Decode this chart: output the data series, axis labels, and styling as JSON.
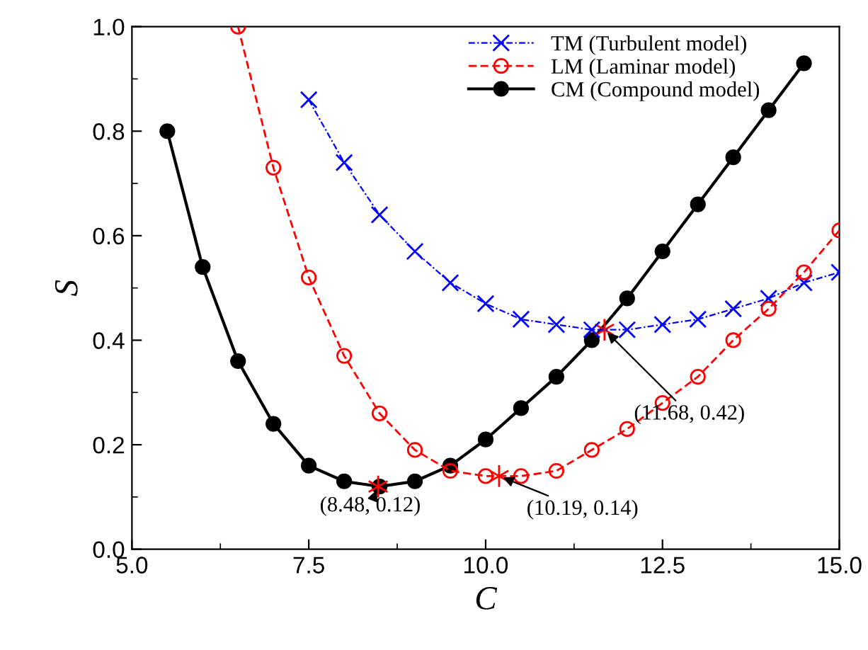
{
  "chart_data": {
    "type": "line",
    "xlabel": "C",
    "ylabel": "S",
    "xlim": [
      5.0,
      15.0
    ],
    "xticks": [
      {
        "value": 5,
        "label": "5.0"
      },
      {
        "value": 7.5,
        "label": "7.5"
      },
      {
        "value": 10,
        "label": "10.0"
      },
      {
        "value": 12.5,
        "label": "12.5"
      },
      {
        "value": 15,
        "label": "15.0"
      }
    ],
    "ylim": [
      0,
      1.0
    ],
    "yticks": [
      {
        "value": 0,
        "label": "0.0"
      },
      {
        "value": 0.2,
        "label": "0.2"
      },
      {
        "value": 0.4,
        "label": "0.4"
      },
      {
        "value": 0.6,
        "label": "0.6"
      },
      {
        "value": 0.8,
        "label": "0.8"
      },
      {
        "value": 1.0,
        "label": "1.0"
      }
    ],
    "grid": false,
    "legend": "top right",
    "series": [
      {
        "name": "TM (Turbulent model)",
        "color": "#0000ff",
        "marker": "cross",
        "line_style": "dotted",
        "x": [
          7.5,
          8.0,
          8.5,
          9.0,
          9.5,
          10.0,
          10.5,
          11.0,
          11.5,
          12.0,
          12.5,
          13.0,
          13.5,
          14.0,
          14.5,
          15.0
        ],
        "values": [
          0.86,
          0.74,
          0.64,
          0.57,
          0.51,
          0.47,
          0.44,
          0.43,
          0.42,
          0.42,
          0.43,
          0.44,
          0.46,
          0.48,
          0.51,
          0.53
        ]
      },
      {
        "name": "LM (Laminar model)",
        "color": "#ff0000",
        "marker": "circle",
        "line_style": "dashed",
        "x": [
          6.5,
          7.0,
          7.5,
          8.0,
          8.5,
          9.0,
          9.5,
          10.0,
          10.5,
          11.0,
          11.5,
          12.0,
          12.5,
          13.0,
          13.5,
          14.0,
          14.5,
          15.0
        ],
        "values": [
          1.0,
          0.73,
          0.52,
          0.37,
          0.26,
          0.19,
          0.15,
          0.14,
          0.14,
          0.15,
          0.19,
          0.23,
          0.28,
          0.33,
          0.4,
          0.46,
          0.53,
          0.61
        ]
      },
      {
        "name": "CM (Compound model)",
        "color": "#000000",
        "marker": "circle",
        "line_style": "solid",
        "x": [
          5.5,
          6.0,
          6.5,
          7.0,
          7.5,
          8.0,
          8.5,
          9.0,
          9.5,
          10.0,
          10.5,
          11.0,
          11.5,
          12.0,
          12.5,
          13.0,
          13.5,
          14.0,
          14.5
        ],
        "values": [
          0.8,
          0.54,
          0.36,
          0.24,
          0.16,
          0.13,
          0.12,
          0.13,
          0.16,
          0.21,
          0.27,
          0.33,
          0.4,
          0.48,
          0.57,
          0.66,
          0.75,
          0.84,
          0.93
        ]
      }
    ],
    "annotations": [
      {
        "text": "(8.48, 0.12)",
        "x": 8.48,
        "y": 0.12
      },
      {
        "text": "(10.19, 0.14)",
        "x": 10.19,
        "y": 0.14
      },
      {
        "text": "(11.68, 0.42)",
        "x": 11.68,
        "y": 0.42
      }
    ]
  }
}
